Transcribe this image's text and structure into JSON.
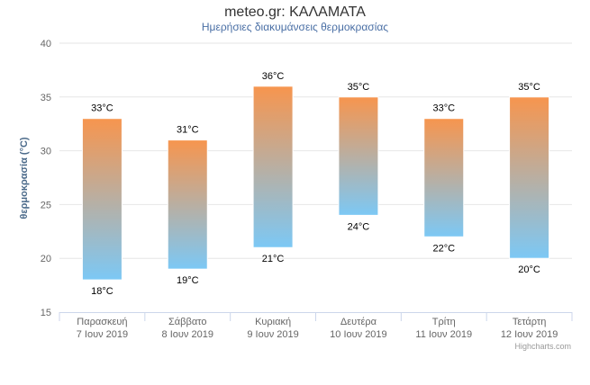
{
  "chart_data": {
    "type": "columnrange",
    "title": "meteo.gr: ΚΑΛΑΜΑΤΑ",
    "subtitle": "Ημερήσιες διακυμάνσεις θερμοκρασίας",
    "ylabel": "θερμοκρασία (°C)",
    "ylim": [
      15,
      40
    ],
    "yticks": [
      15,
      20,
      25,
      30,
      35,
      40
    ],
    "grid": true,
    "unit": "°C",
    "categories": [
      [
        "Παρασκευή",
        "7 Ιουν 2019"
      ],
      [
        "Σάββατο",
        "8 Ιουν 2019"
      ],
      [
        "Κυριακή",
        "9 Ιουν 2019"
      ],
      [
        "Δευτέρα",
        "10 Ιουν 2019"
      ],
      [
        "Τρίτη",
        "11 Ιουν 2019"
      ],
      [
        "Τετάρτη",
        "12 Ιουν 2019"
      ]
    ],
    "low": [
      18,
      19,
      21,
      24,
      22,
      20
    ],
    "high": [
      33,
      31,
      36,
      35,
      33,
      35
    ],
    "colors": {
      "top": "#f7954e",
      "bottom": "#7cc8f5"
    },
    "credits": "Highcharts.com"
  }
}
